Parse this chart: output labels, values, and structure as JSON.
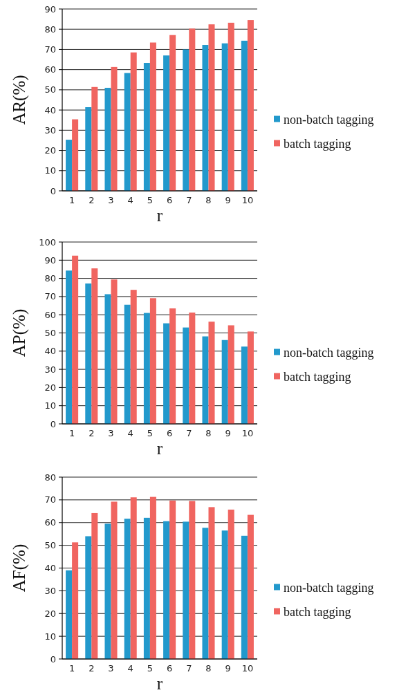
{
  "chart_data": [
    {
      "type": "bar",
      "xlabel": "r",
      "ylabel": "AR(%)",
      "categories": [
        "1",
        "2",
        "3",
        "4",
        "5",
        "6",
        "7",
        "8",
        "9",
        "10"
      ],
      "series": [
        {
          "name": "non-batch tagging",
          "color": "#2299cc",
          "values": [
            25.3,
            41.4,
            51,
            58.3,
            63.3,
            67,
            70,
            72.2,
            73,
            74.3
          ]
        },
        {
          "name": "batch tagging",
          "color": "#f06560",
          "values": [
            35.4,
            51.4,
            61.3,
            68.5,
            73.4,
            77.1,
            80.3,
            82.4,
            83.2,
            84.5
          ]
        }
      ],
      "ylim": [
        0,
        90
      ],
      "yticks": [
        0,
        10,
        20,
        30,
        40,
        50,
        60,
        70,
        80,
        90
      ],
      "grid": "y",
      "legend": "right"
    },
    {
      "type": "bar",
      "xlabel": "r",
      "ylabel": "AP(%)",
      "categories": [
        "1",
        "2",
        "3",
        "4",
        "5",
        "6",
        "7",
        "8",
        "9",
        "10"
      ],
      "series": [
        {
          "name": "non-batch tagging",
          "color": "#2299cc",
          "values": [
            84.3,
            77.2,
            71.3,
            65.5,
            61,
            55.3,
            53,
            48.1,
            46.1,
            42.5
          ]
        },
        {
          "name": "batch tagging",
          "color": "#f06560",
          "values": [
            92.5,
            85.5,
            79.4,
            73.7,
            69.1,
            63.5,
            61.2,
            56.2,
            54.2,
            50.8
          ]
        }
      ],
      "ylim": [
        0,
        100
      ],
      "yticks": [
        0,
        10,
        20,
        30,
        40,
        50,
        60,
        70,
        80,
        90,
        100
      ],
      "grid": "y",
      "legend": "right"
    },
    {
      "type": "bar",
      "xlabel": "r",
      "ylabel": "AF(%)",
      "categories": [
        "1",
        "2",
        "3",
        "4",
        "5",
        "6",
        "7",
        "8",
        "9",
        "10"
      ],
      "series": [
        {
          "name": "non-batch tagging",
          "color": "#2299cc",
          "values": [
            39,
            54,
            59.5,
            61.7,
            62.1,
            60.6,
            60.4,
            57.7,
            56.5,
            54.2
          ]
        },
        {
          "name": "batch tagging",
          "color": "#f06560",
          "values": [
            51.3,
            64.2,
            69.2,
            71.1,
            71.3,
            69.7,
            69.5,
            66.8,
            65.7,
            63.4
          ]
        }
      ],
      "ylim": [
        0,
        80
      ],
      "yticks": [
        0,
        10,
        20,
        30,
        40,
        50,
        60,
        70,
        80
      ],
      "grid": "y",
      "legend": "right"
    }
  ]
}
